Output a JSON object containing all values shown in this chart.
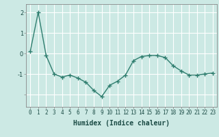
{
  "x": [
    0,
    1,
    2,
    3,
    4,
    5,
    6,
    7,
    8,
    9,
    10,
    11,
    12,
    13,
    14,
    15,
    16,
    17,
    18,
    19,
    20,
    21,
    22,
    23
  ],
  "y": [
    0.1,
    2.0,
    -0.1,
    -1.0,
    -1.15,
    -1.05,
    -1.2,
    -1.4,
    -1.8,
    -2.1,
    -1.55,
    -1.35,
    -1.05,
    -0.35,
    -0.15,
    -0.1,
    -0.1,
    -0.2,
    -0.6,
    -0.85,
    -1.05,
    -1.05,
    -1.0,
    -0.95
  ],
  "line_color": "#2e7d6e",
  "marker": "+",
  "markersize": 4,
  "linewidth": 1.0,
  "markeredgewidth": 1.0,
  "bg_color": "#cce9e4",
  "grid_color": "#ffffff",
  "xlabel": "Humidex (Indice chaleur)",
  "xlabel_fontsize": 7,
  "xlabel_fontweight": "bold",
  "ytick_labels": [
    "",
    "-1",
    "0",
    "1",
    "2"
  ],
  "ytick_vals": [
    -2.0,
    -1.0,
    0.0,
    1.0,
    2.0
  ],
  "xlim": [
    -0.5,
    23.5
  ],
  "ylim": [
    -2.6,
    2.4
  ],
  "tick_fontsize": 5.5,
  "spine_color": "#888888"
}
